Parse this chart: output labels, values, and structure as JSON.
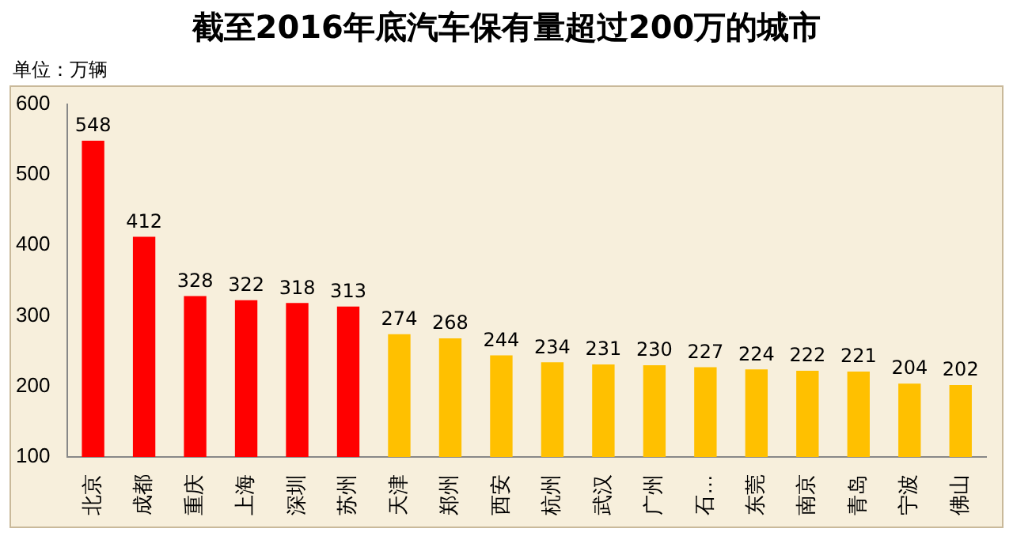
{
  "chart_data": {
    "type": "bar",
    "title": "截至2016年底汽车保有量超过200万的城市",
    "ylabel": "单位：万辆",
    "categories": [
      "北京",
      "成都",
      "重庆",
      "上海",
      "深圳",
      "苏州",
      "天津",
      "郑州",
      "西安",
      "杭州",
      "武汉",
      "广州",
      "石…",
      "东莞",
      "南京",
      "青岛",
      "宁波",
      "佛山"
    ],
    "values": [
      548,
      412,
      328,
      322,
      318,
      313,
      274,
      268,
      244,
      234,
      231,
      230,
      227,
      224,
      222,
      221,
      204,
      202
    ],
    "colors": [
      "#ff0000",
      "#ff0000",
      "#ff0000",
      "#ff0000",
      "#ff0000",
      "#ff0000",
      "#ffc000",
      "#ffc000",
      "#ffc000",
      "#ffc000",
      "#ffc000",
      "#ffc000",
      "#ffc000",
      "#ffc000",
      "#ffc000",
      "#ffc000",
      "#ffc000",
      "#ffc000"
    ],
    "ylim": [
      100,
      600
    ],
    "yticks": [
      100,
      200,
      300,
      400,
      500,
      600
    ],
    "grid": false,
    "legend": false,
    "data_labels": true
  }
}
